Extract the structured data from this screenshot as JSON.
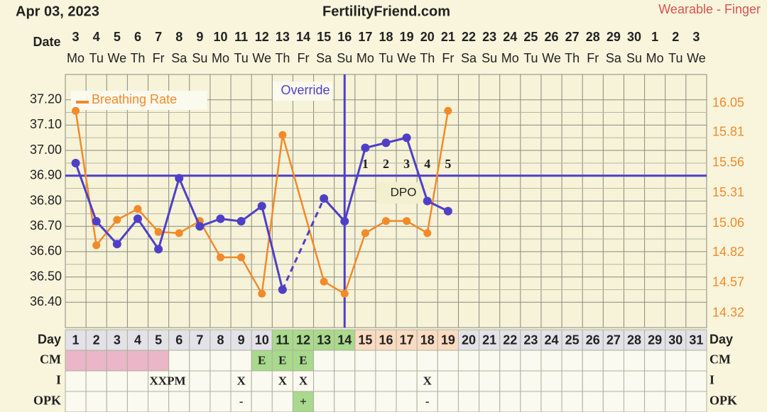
{
  "header": {
    "date": "Apr 03, 2023",
    "site": "FertilityFriend.com",
    "source": "Wearable - Finger"
  },
  "chart_data": {
    "type": "line",
    "x_label": "Date",
    "dates": [
      3,
      4,
      5,
      6,
      7,
      8,
      9,
      10,
      11,
      12,
      13,
      14,
      15,
      16,
      17,
      18,
      19,
      20,
      21,
      22,
      23,
      24,
      25,
      26,
      27,
      28,
      29,
      30,
      1,
      2,
      3
    ],
    "weekdays": [
      "Mo",
      "Tu",
      "We",
      "Th",
      "Fr",
      "Sa",
      "Su",
      "Mo",
      "Tu",
      "We",
      "Th",
      "Fr",
      "Sa",
      "Su",
      "Mo",
      "Tu",
      "We",
      "Th",
      "Fr",
      "Sa",
      "Su",
      "Mo",
      "Tu",
      "We",
      "Th",
      "Fr",
      "Sa",
      "Su",
      "Mo",
      "Tu",
      "We"
    ],
    "categories": [
      1,
      2,
      3,
      4,
      5,
      6,
      7,
      8,
      9,
      10,
      11,
      12,
      13,
      14,
      15,
      16,
      17,
      18,
      19,
      20,
      21,
      22,
      23,
      24,
      25,
      26,
      27,
      28,
      29,
      30,
      31
    ],
    "series": [
      {
        "color": "#4f3fc8",
        "gap": "dashed",
        "values": [
          36.95,
          36.72,
          36.63,
          36.73,
          36.61,
          36.89,
          36.7,
          36.73,
          36.72,
          36.78,
          36.45,
          null,
          36.81,
          36.72,
          37.01,
          37.03,
          37.05,
          36.8,
          36.76,
          null,
          null,
          null,
          null,
          null,
          null,
          null,
          null,
          null,
          null,
          null,
          null
        ]
      },
      {
        "name": "Breathing Rate",
        "color": "#f28a2a",
        "axis": "y2",
        "gap": "solid",
        "values": [
          15.99,
          14.88,
          15.09,
          15.18,
          14.99,
          14.98,
          15.08,
          14.78,
          14.78,
          14.48,
          15.79,
          null,
          14.58,
          14.48,
          14.98,
          15.08,
          15.08,
          14.98,
          15.99,
          null,
          null,
          null,
          null,
          null,
          null,
          null,
          null,
          null,
          null,
          null,
          null
        ]
      }
    ],
    "ylim": [
      36.3,
      37.3
    ],
    "yticks": [
      {
        "value": 37.2,
        "label": "37.20"
      },
      {
        "value": 37.1,
        "label": "37.10"
      },
      {
        "value": 37.0,
        "label": "37.00"
      },
      {
        "value": 36.9,
        "label": "36.90"
      },
      {
        "value": 36.8,
        "label": "36.80"
      },
      {
        "value": 36.7,
        "label": "36.70"
      },
      {
        "value": 36.6,
        "label": "36.60"
      },
      {
        "value": 36.5,
        "label": "36.50"
      },
      {
        "value": 36.4,
        "label": "36.40"
      }
    ],
    "y2lim": [
      14.2,
      16.29
    ],
    "y2ticks": [
      16.05,
      15.81,
      15.56,
      15.31,
      15.06,
      14.82,
      14.57,
      14.32
    ],
    "grid": true,
    "coverline": 36.9,
    "override_label": "Override",
    "dpo_label": "DPO",
    "dpo": [
      null,
      null,
      null,
      null,
      null,
      null,
      null,
      null,
      null,
      null,
      null,
      null,
      null,
      null,
      1,
      2,
      3,
      4,
      5,
      null,
      null,
      null,
      null,
      null,
      null,
      null,
      null,
      null,
      null,
      null,
      null
    ]
  },
  "table": {
    "palette": {
      "d": "#e2e2e8",
      "g": "#a9d98d",
      "p": "#fbdcc2",
      "k": "#eab6c8",
      "w": "#fafaf0"
    },
    "rows": [
      {
        "label": "Day",
        "fill": [
          "d",
          "d",
          "d",
          "d",
          "d",
          "d",
          "d",
          "d",
          "d",
          "d",
          "g",
          "g",
          "g",
          "g",
          "p",
          "p",
          "p",
          "p",
          "p",
          "d",
          "d",
          "d",
          "d",
          "d",
          "d",
          "d",
          "d",
          "d",
          "d",
          "d",
          "d"
        ]
      },
      {
        "label": "CM",
        "values": [
          null,
          null,
          null,
          null,
          null,
          null,
          null,
          null,
          null,
          "E",
          "E",
          "E",
          null,
          null,
          null,
          null,
          null,
          null,
          null,
          null,
          null,
          null,
          null,
          null,
          null,
          null,
          null,
          null,
          null,
          null,
          null
        ],
        "fill": [
          "k",
          "k",
          "k",
          "k",
          "k",
          "w",
          "w",
          "w",
          "w",
          "g",
          "g",
          "g",
          "w",
          "w",
          "w",
          "w",
          "w",
          "w",
          "w",
          "w",
          "w",
          "w",
          "w",
          "w",
          "w",
          "w",
          "w",
          "w",
          "w",
          "w",
          "w"
        ]
      },
      {
        "label": "I",
        "values": [
          null,
          null,
          null,
          null,
          "XXPM",
          null,
          null,
          null,
          "X",
          null,
          "X",
          "X",
          null,
          null,
          null,
          null,
          null,
          "X",
          null,
          null,
          null,
          null,
          null,
          null,
          null,
          null,
          null,
          null,
          null,
          null,
          null
        ],
        "fill": [
          "w",
          "w",
          "w",
          "w",
          "w",
          "w",
          "w",
          "w",
          "w",
          "w",
          "w",
          "w",
          "w",
          "w",
          "w",
          "w",
          "w",
          "w",
          "w",
          "w",
          "w",
          "w",
          "w",
          "w",
          "w",
          "w",
          "w",
          "w",
          "w",
          "w",
          "w"
        ]
      },
      {
        "label": "OPK",
        "values": [
          null,
          null,
          null,
          null,
          null,
          null,
          null,
          null,
          "-",
          null,
          null,
          "+",
          null,
          null,
          null,
          null,
          null,
          "-",
          null,
          null,
          null,
          null,
          null,
          null,
          null,
          null,
          null,
          null,
          null,
          null,
          null
        ],
        "fill": [
          "w",
          "w",
          "w",
          "w",
          "w",
          "w",
          "w",
          "w",
          "w",
          "w",
          "w",
          "g",
          "w",
          "w",
          "w",
          "w",
          "w",
          "w",
          "w",
          "w",
          "w",
          "w",
          "w",
          "w",
          "w",
          "w",
          "w",
          "w",
          "w",
          "w",
          "w"
        ]
      }
    ]
  }
}
